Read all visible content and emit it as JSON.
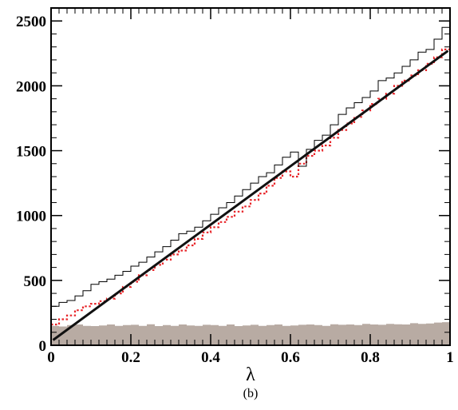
{
  "figure": {
    "caption": "(b)"
  },
  "chart_data": {
    "type": "line",
    "xlabel": "λ",
    "ylabel": "",
    "xlim": [
      0,
      1
    ],
    "ylim": [
      0,
      2600
    ],
    "x_ticks": [
      "0",
      "0.2",
      "0.4",
      "0.6",
      "0.8",
      "1"
    ],
    "x_tick_values": [
      0,
      0.2,
      0.4,
      0.6,
      0.8,
      1
    ],
    "y_ticks": [
      "0",
      "500",
      "1000",
      "1500",
      "2000",
      "2500"
    ],
    "y_tick_values": [
      0,
      500,
      1000,
      1500,
      2000,
      2500
    ],
    "grid": false,
    "legend": "none",
    "bins": 100,
    "series": [
      {
        "style": "black thin step histogram",
        "color": "#000000",
        "x": [
          0,
          0.02,
          0.04,
          0.06,
          0.08,
          0.1,
          0.12,
          0.14,
          0.16,
          0.18,
          0.2,
          0.22,
          0.24,
          0.26,
          0.28,
          0.3,
          0.32,
          0.34,
          0.36,
          0.38,
          0.4,
          0.42,
          0.44,
          0.46,
          0.48,
          0.5,
          0.52,
          0.54,
          0.56,
          0.58,
          0.6,
          0.62,
          0.64,
          0.66,
          0.68,
          0.7,
          0.72,
          0.74,
          0.76,
          0.78,
          0.8,
          0.82,
          0.84,
          0.86,
          0.88,
          0.9,
          0.92,
          0.94,
          0.96,
          0.98,
          1.0
        ],
        "y": [
          300,
          330,
          345,
          380,
          420,
          470,
          490,
          510,
          540,
          570,
          610,
          640,
          680,
          720,
          760,
          810,
          860,
          880,
          910,
          960,
          1010,
          1060,
          1100,
          1150,
          1200,
          1250,
          1300,
          1330,
          1390,
          1450,
          1490,
          1380,
          1510,
          1580,
          1620,
          1700,
          1780,
          1830,
          1870,
          1910,
          1960,
          2040,
          2060,
          2100,
          2150,
          2200,
          2260,
          2280,
          2360,
          2450,
          2530
        ]
      },
      {
        "style": "red dotted step histogram",
        "color": "#e8262a",
        "x": [
          0,
          0.02,
          0.04,
          0.06,
          0.08,
          0.1,
          0.12,
          0.14,
          0.16,
          0.18,
          0.2,
          0.22,
          0.24,
          0.26,
          0.28,
          0.3,
          0.32,
          0.34,
          0.36,
          0.38,
          0.4,
          0.42,
          0.44,
          0.46,
          0.48,
          0.5,
          0.52,
          0.54,
          0.56,
          0.58,
          0.6,
          0.62,
          0.64,
          0.66,
          0.68,
          0.7,
          0.72,
          0.74,
          0.76,
          0.78,
          0.8,
          0.82,
          0.84,
          0.86,
          0.88,
          0.9,
          0.92,
          0.94,
          0.96,
          0.98,
          1.0
        ],
        "y": [
          160,
          200,
          230,
          270,
          300,
          320,
          340,
          360,
          400,
          450,
          490,
          540,
          580,
          620,
          660,
          700,
          730,
          770,
          820,
          870,
          910,
          950,
          990,
          1030,
          1070,
          1120,
          1170,
          1230,
          1290,
          1340,
          1300,
          1400,
          1460,
          1500,
          1540,
          1600,
          1660,
          1710,
          1760,
          1810,
          1860,
          1900,
          1940,
          2000,
          2040,
          2080,
          2120,
          2170,
          2220,
          2280,
          2330
        ]
      },
      {
        "style": "black thick line fit",
        "color": "#111111",
        "x": [
          0.005,
          0.995
        ],
        "y": [
          40,
          2270
        ]
      },
      {
        "style": "grey filled histogram",
        "color": "#b8aba3",
        "x": [
          0,
          0.02,
          0.04,
          0.06,
          0.08,
          0.1,
          0.12,
          0.14,
          0.16,
          0.18,
          0.2,
          0.22,
          0.24,
          0.26,
          0.28,
          0.3,
          0.32,
          0.34,
          0.36,
          0.38,
          0.4,
          0.42,
          0.44,
          0.46,
          0.48,
          0.5,
          0.52,
          0.54,
          0.56,
          0.58,
          0.6,
          0.62,
          0.64,
          0.66,
          0.68,
          0.7,
          0.72,
          0.74,
          0.76,
          0.78,
          0.8,
          0.82,
          0.84,
          0.86,
          0.88,
          0.9,
          0.92,
          0.94,
          0.96,
          0.98,
          1.0
        ],
        "y": [
          150,
          145,
          155,
          160,
          150,
          148,
          152,
          160,
          150,
          155,
          158,
          150,
          162,
          148,
          155,
          150,
          160,
          152,
          150,
          158,
          155,
          150,
          160,
          148,
          152,
          158,
          150,
          155,
          160,
          150,
          152,
          158,
          160,
          155,
          150,
          162,
          158,
          160,
          155,
          165,
          160,
          158,
          165,
          162,
          160,
          170,
          165,
          168,
          175,
          178,
          180
        ]
      }
    ]
  }
}
